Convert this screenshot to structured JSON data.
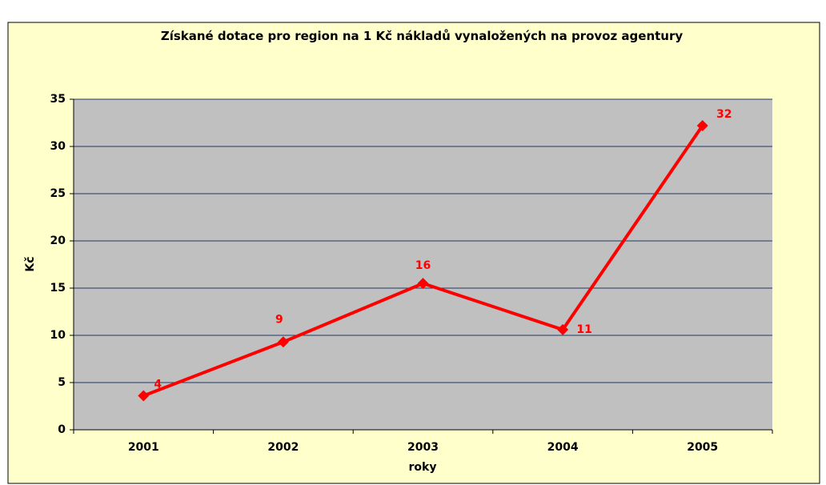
{
  "chart_data": {
    "type": "line",
    "title": "Získané dotace pro region na 1 Kč nákladů vynaložených na provoz agentury",
    "x_label": "roky",
    "y_label": "Kč",
    "categories": [
      "2001",
      "2002",
      "2003",
      "2004",
      "2005"
    ],
    "series": [
      {
        "name": "Kč",
        "color": "#ff0000",
        "values": [
          3.6,
          9.3,
          15.5,
          10.6,
          32.2
        ],
        "value_labels": [
          "4",
          "9",
          "16",
          "11",
          "32"
        ]
      }
    ],
    "ylim": [
      0,
      35
    ],
    "yticks": [
      0,
      5,
      10,
      15,
      20,
      25,
      30,
      35
    ],
    "grid": true
  }
}
